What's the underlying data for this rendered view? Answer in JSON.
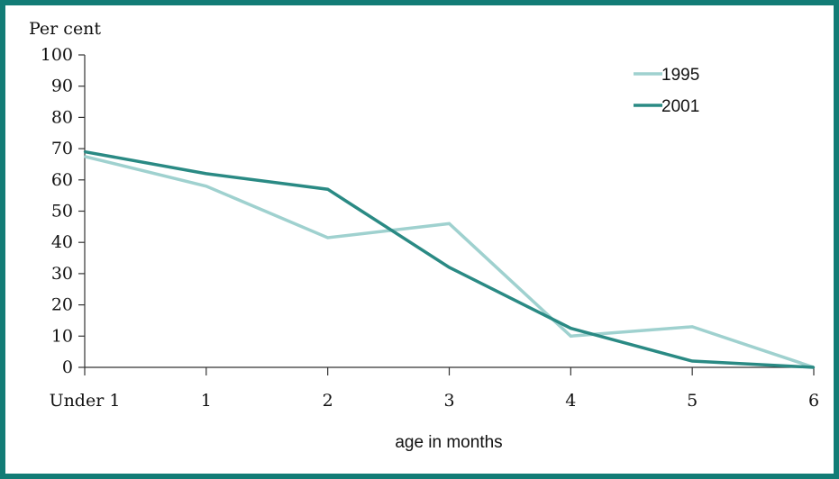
{
  "chart_data": {
    "type": "line",
    "ylabel": "Per cent",
    "xlabel": "age in months",
    "categories": [
      "Under 1",
      "1",
      "2",
      "3",
      "4",
      "5",
      "6"
    ],
    "ylim": [
      0,
      100
    ],
    "yticks": [
      0,
      10,
      20,
      30,
      40,
      50,
      60,
      70,
      80,
      90,
      100
    ],
    "grid": false,
    "legend_position": "top-right",
    "series": [
      {
        "name": "1995",
        "color": "#9fd1cf",
        "values": [
          67.5,
          58,
          41.5,
          46,
          10,
          13,
          0
        ]
      },
      {
        "name": "2001",
        "color": "#2a8a84",
        "values": [
          69,
          62,
          57,
          32,
          12.5,
          2,
          0
        ]
      }
    ]
  },
  "colors": {
    "frame": "#127c76",
    "axis": "#333333"
  }
}
